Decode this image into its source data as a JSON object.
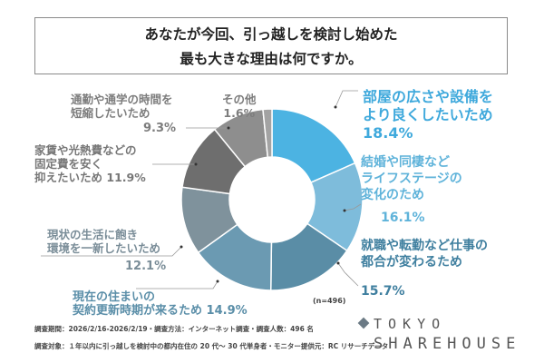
{
  "title": {
    "line1": "あなたが今回、引っ越しを検討し始めた",
    "line2": "最も大きな理由は何ですか。"
  },
  "chart_data": {
    "type": "pie",
    "donut": true,
    "sample_size_label": "(n=496)",
    "slices": [
      {
        "label_lines": [
          "部屋の広さや設備を",
          "より良くしたいため"
        ],
        "value": 18.4,
        "value_label": "18.4%",
        "color": "#4cb3e2",
        "text_color": "#3fa9dc"
      },
      {
        "label_lines": [
          "結婚や同棲など",
          "ライフステージの",
          "変化のため"
        ],
        "value": 16.1,
        "value_label": "16.1%",
        "color": "#7ebcdb",
        "text_color": "#5fb3da"
      },
      {
        "label_lines": [
          "就職や転勤など仕事の",
          "都合が変わるため"
        ],
        "value": 15.7,
        "value_label": "15.7%",
        "color": "#5a8da6",
        "text_color": "#3f7f9f"
      },
      {
        "label_lines": [
          "現在の住まいの",
          "契約更新時期が来るため"
        ],
        "value": 14.9,
        "value_label": "14.9%",
        "color": "#6b9ab2",
        "text_color": "#5a8ea8"
      },
      {
        "label_lines": [
          "現状の生活に飽き",
          "環境を一新したいため"
        ],
        "value": 12.1,
        "value_label": "12.1%",
        "color": "#7f929c",
        "text_color": "#7a8d98"
      },
      {
        "label_lines": [
          "家賃や光熱費などの",
          "固定費を安く",
          "抑えたいため"
        ],
        "value": 11.9,
        "value_label": "11.9%",
        "color": "#6e6e6e",
        "text_color": "#777777"
      },
      {
        "label_lines": [
          "通勤や通学の時間を",
          "短縮したいため"
        ],
        "value": 9.3,
        "value_label": "9.3%",
        "color": "#8e8e8e",
        "text_color": "#7d7d7d"
      },
      {
        "label_lines": [
          "その他"
        ],
        "value": 1.6,
        "value_label": "1.6%",
        "color": "#a3a3a3",
        "text_color": "#7d7d7d"
      }
    ]
  },
  "footer": {
    "line1": "調査期間：2026/2/16-2026/2/19・調査方法：インターネット調査・調査人数：496 名",
    "line2": "調査対象：１年以内に引っ越しを検討中の都内在住の 20 代～ 30 代単身者・モニター提供元：RC リサーチデータ"
  },
  "logo": {
    "line1": "TOKYO",
    "line2": "SHAREHOUSE"
  }
}
